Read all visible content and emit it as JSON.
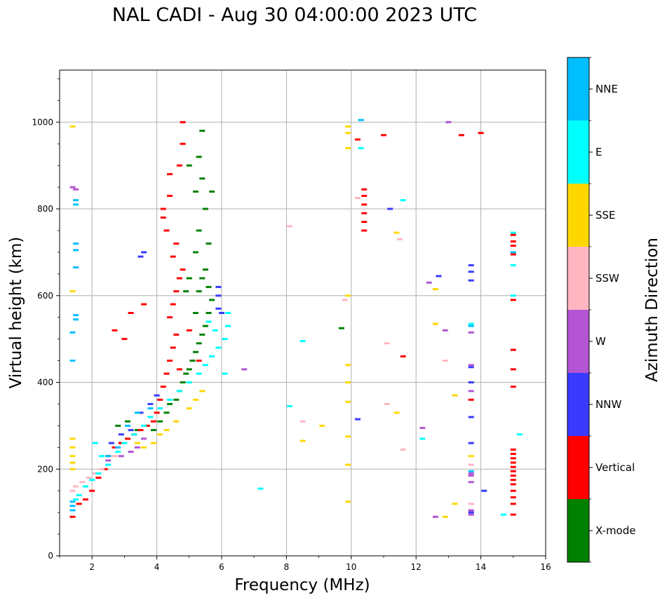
{
  "chart_data": {
    "type": "scatter",
    "title": "NAL CADI - Aug 30 04:00:00 2023 UTC",
    "xlabel": "Frequency (MHz)",
    "ylabel": "Virtual height (km)",
    "xlim": [
      1,
      16
    ],
    "ylim": [
      0,
      1120
    ],
    "x_ticks": [
      2,
      4,
      6,
      8,
      10,
      12,
      14,
      16
    ],
    "y_ticks": [
      0,
      200,
      400,
      600,
      800,
      1000
    ],
    "grid": true,
    "colorbar": {
      "label": "Azimuth Direction",
      "categories": [
        "X-mode",
        "Vertical",
        "NNW",
        "W",
        "SSW",
        "SSE",
        "E",
        "NNE"
      ],
      "colors": [
        "#008000",
        "#ff0000",
        "#3a3aff",
        "#b455d4",
        "#ffb6c1",
        "#ffd700",
        "#00ffff",
        "#00bfff"
      ]
    },
    "series": [
      {
        "name": "X-mode",
        "points": [
          [
            2.8,
            300
          ],
          [
            3.1,
            310
          ],
          [
            3.4,
            290
          ],
          [
            3.7,
            300
          ],
          [
            3.9,
            290
          ],
          [
            4.1,
            310
          ],
          [
            4.3,
            330
          ],
          [
            4.4,
            350
          ],
          [
            4.6,
            360
          ],
          [
            4.7,
            380
          ],
          [
            4.8,
            400
          ],
          [
            4.9,
            420
          ],
          [
            5.0,
            430
          ],
          [
            5.1,
            450
          ],
          [
            5.2,
            470
          ],
          [
            5.3,
            490
          ],
          [
            5.4,
            510
          ],
          [
            5.5,
            530
          ],
          [
            5.6,
            560
          ],
          [
            5.7,
            590
          ],
          [
            5.3,
            610
          ],
          [
            5.4,
            640
          ],
          [
            5.5,
            660
          ],
          [
            5.2,
            700
          ],
          [
            5.6,
            720
          ],
          [
            5.3,
            750
          ],
          [
            5.5,
            800
          ],
          [
            5.2,
            840
          ],
          [
            5.4,
            870
          ],
          [
            5.0,
            900
          ],
          [
            5.3,
            920
          ],
          [
            5.4,
            980
          ],
          [
            5.7,
            840
          ],
          [
            4.9,
            610
          ],
          [
            5.0,
            640
          ],
          [
            5.2,
            560
          ],
          [
            5.6,
            620
          ],
          [
            9.7,
            525
          ]
        ]
      },
      {
        "name": "Vertical",
        "points": [
          [
            1.4,
            90
          ],
          [
            1.6,
            120
          ],
          [
            1.8,
            130
          ],
          [
            2.0,
            150
          ],
          [
            2.2,
            180
          ],
          [
            2.4,
            200
          ],
          [
            2.5,
            230
          ],
          [
            2.7,
            250
          ],
          [
            2.9,
            260
          ],
          [
            3.1,
            270
          ],
          [
            3.3,
            280
          ],
          [
            3.5,
            290
          ],
          [
            3.7,
            300
          ],
          [
            3.9,
            310
          ],
          [
            4.0,
            330
          ],
          [
            4.1,
            360
          ],
          [
            4.2,
            390
          ],
          [
            4.3,
            420
          ],
          [
            4.4,
            450
          ],
          [
            4.5,
            480
          ],
          [
            4.6,
            510
          ],
          [
            4.4,
            550
          ],
          [
            4.5,
            580
          ],
          [
            4.6,
            610
          ],
          [
            4.7,
            640
          ],
          [
            4.8,
            660
          ],
          [
            4.5,
            690
          ],
          [
            4.6,
            720
          ],
          [
            4.3,
            750
          ],
          [
            4.2,
            780
          ],
          [
            4.2,
            800
          ],
          [
            4.4,
            830
          ],
          [
            4.4,
            880
          ],
          [
            4.7,
            900
          ],
          [
            4.8,
            950
          ],
          [
            4.8,
            1000
          ],
          [
            3.0,
            500
          ],
          [
            3.2,
            560
          ],
          [
            2.7,
            520
          ],
          [
            3.6,
            580
          ],
          [
            5.0,
            520
          ],
          [
            5.3,
            450
          ],
          [
            4.7,
            430
          ],
          [
            10.2,
            960
          ],
          [
            10.4,
            750
          ],
          [
            10.4,
            770
          ],
          [
            10.4,
            790
          ],
          [
            10.4,
            810
          ],
          [
            10.4,
            830
          ],
          [
            10.4,
            845
          ],
          [
            11.0,
            970
          ],
          [
            11.6,
            460
          ],
          [
            13.4,
            970
          ],
          [
            13.7,
            360
          ],
          [
            15.0,
            95
          ],
          [
            15.0,
            120
          ],
          [
            15.0,
            135
          ],
          [
            15.0,
            150
          ],
          [
            15.0,
            165
          ],
          [
            15.0,
            175
          ],
          [
            15.0,
            185
          ],
          [
            15.0,
            195
          ],
          [
            15.0,
            205
          ],
          [
            15.0,
            215
          ],
          [
            15.0,
            225
          ],
          [
            15.0,
            235
          ],
          [
            15.0,
            245
          ],
          [
            15.0,
            390
          ],
          [
            15.0,
            430
          ],
          [
            15.0,
            475
          ],
          [
            15.0,
            590
          ],
          [
            15.0,
            695
          ],
          [
            15.0,
            715
          ],
          [
            15.0,
            725
          ],
          [
            15.0,
            740
          ],
          [
            14.0,
            975
          ]
        ]
      },
      {
        "name": "NNW",
        "points": [
          [
            2.6,
            260
          ],
          [
            2.9,
            280
          ],
          [
            3.2,
            290
          ],
          [
            3.5,
            330
          ],
          [
            3.8,
            350
          ],
          [
            4.0,
            370
          ],
          [
            3.5,
            690
          ],
          [
            3.6,
            700
          ],
          [
            5.9,
            570
          ],
          [
            5.9,
            620
          ],
          [
            5.9,
            600
          ],
          [
            6.0,
            560
          ],
          [
            10.2,
            315
          ],
          [
            11.2,
            800
          ],
          [
            12.7,
            645
          ],
          [
            13.7,
            100
          ],
          [
            13.7,
            260
          ],
          [
            13.7,
            320
          ],
          [
            13.7,
            400
          ],
          [
            13.7,
            435
          ],
          [
            13.7,
            635
          ],
          [
            13.7,
            655
          ],
          [
            13.7,
            670
          ],
          [
            14.1,
            150
          ]
        ]
      },
      {
        "name": "W",
        "points": [
          [
            2.5,
            220
          ],
          [
            2.9,
            230
          ],
          [
            3.2,
            240
          ],
          [
            3.4,
            250
          ],
          [
            3.6,
            270
          ],
          [
            1.4,
            850
          ],
          [
            1.5,
            845
          ],
          [
            6.7,
            430
          ],
          [
            12.2,
            295
          ],
          [
            12.4,
            630
          ],
          [
            12.6,
            90
          ],
          [
            12.9,
            520
          ],
          [
            13.0,
            1000
          ],
          [
            13.7,
            95
          ],
          [
            13.7,
            105
          ],
          [
            13.7,
            170
          ],
          [
            13.7,
            185
          ],
          [
            13.7,
            190
          ],
          [
            13.7,
            515
          ],
          [
            13.7,
            380
          ],
          [
            13.7,
            440
          ]
        ]
      },
      {
        "name": "SSW",
        "points": [
          [
            1.4,
            150
          ],
          [
            1.5,
            160
          ],
          [
            1.7,
            170
          ],
          [
            1.9,
            180
          ],
          [
            2.1,
            190
          ],
          [
            2.3,
            200
          ],
          [
            2.7,
            230
          ],
          [
            8.1,
            760
          ],
          [
            8.5,
            310
          ],
          [
            9.8,
            590
          ],
          [
            11.1,
            490
          ],
          [
            11.1,
            350
          ],
          [
            11.5,
            730
          ],
          [
            11.6,
            245
          ],
          [
            12.9,
            450
          ],
          [
            13.7,
            120
          ],
          [
            13.7,
            210
          ],
          [
            10.2,
            825
          ]
        ]
      },
      {
        "name": "SSE",
        "points": [
          [
            1.4,
            990
          ],
          [
            1.4,
            270
          ],
          [
            1.4,
            250
          ],
          [
            1.4,
            230
          ],
          [
            1.4,
            215
          ],
          [
            1.4,
            610
          ],
          [
            1.4,
            200
          ],
          [
            3.4,
            260
          ],
          [
            3.6,
            250
          ],
          [
            3.9,
            260
          ],
          [
            4.1,
            280
          ],
          [
            4.3,
            290
          ],
          [
            4.6,
            310
          ],
          [
            5.0,
            340
          ],
          [
            5.2,
            360
          ],
          [
            5.4,
            380
          ],
          [
            9.9,
            990
          ],
          [
            9.9,
            975
          ],
          [
            9.9,
            940
          ],
          [
            9.9,
            600
          ],
          [
            9.9,
            440
          ],
          [
            9.9,
            400
          ],
          [
            9.9,
            355
          ],
          [
            9.9,
            275
          ],
          [
            9.9,
            210
          ],
          [
            9.9,
            125
          ],
          [
            8.5,
            265
          ],
          [
            9.1,
            300
          ],
          [
            11.4,
            330
          ],
          [
            11.4,
            745
          ],
          [
            12.6,
            535
          ],
          [
            12.6,
            615
          ],
          [
            12.9,
            90
          ],
          [
            13.2,
            120
          ],
          [
            13.2,
            370
          ],
          [
            13.7,
            230
          ]
        ]
      },
      {
        "name": "E",
        "points": [
          [
            1.5,
            130
          ],
          [
            1.6,
            140
          ],
          [
            1.8,
            160
          ],
          [
            2.0,
            175
          ],
          [
            2.2,
            190
          ],
          [
            2.5,
            210
          ],
          [
            2.8,
            240
          ],
          [
            3.0,
            260
          ],
          [
            3.3,
            280
          ],
          [
            3.6,
            300
          ],
          [
            3.8,
            320
          ],
          [
            4.1,
            340
          ],
          [
            4.4,
            360
          ],
          [
            4.7,
            380
          ],
          [
            5.0,
            400
          ],
          [
            5.3,
            420
          ],
          [
            5.5,
            440
          ],
          [
            5.7,
            460
          ],
          [
            5.9,
            480
          ],
          [
            6.1,
            500
          ],
          [
            6.2,
            530
          ],
          [
            6.2,
            560
          ],
          [
            5.6,
            540
          ],
          [
            5.8,
            520
          ],
          [
            6.1,
            420
          ],
          [
            7.2,
            155
          ],
          [
            8.1,
            345
          ],
          [
            8.5,
            495
          ],
          [
            10.3,
            940
          ],
          [
            11.6,
            820
          ],
          [
            12.2,
            270
          ],
          [
            14.7,
            95
          ],
          [
            15.2,
            280
          ],
          [
            15.0,
            600
          ],
          [
            15.0,
            670
          ],
          [
            15.0,
            745
          ],
          [
            13.7,
            535
          ],
          [
            2.1,
            260
          ],
          [
            2.3,
            230
          ]
        ]
      },
      {
        "name": "NNE",
        "points": [
          [
            1.4,
            105
          ],
          [
            1.4,
            115
          ],
          [
            1.4,
            125
          ],
          [
            1.4,
            515
          ],
          [
            1.4,
            450
          ],
          [
            1.5,
            555
          ],
          [
            1.5,
            545
          ],
          [
            1.5,
            720
          ],
          [
            1.5,
            705
          ],
          [
            1.5,
            665
          ],
          [
            1.5,
            810
          ],
          [
            1.5,
            820
          ],
          [
            2.5,
            230
          ],
          [
            2.8,
            250
          ],
          [
            3.1,
            300
          ],
          [
            3.4,
            330
          ],
          [
            3.8,
            340
          ],
          [
            10.3,
            1005
          ],
          [
            13.7,
            195
          ],
          [
            13.7,
            530
          ],
          [
            15.0,
            700
          ]
        ]
      }
    ]
  }
}
